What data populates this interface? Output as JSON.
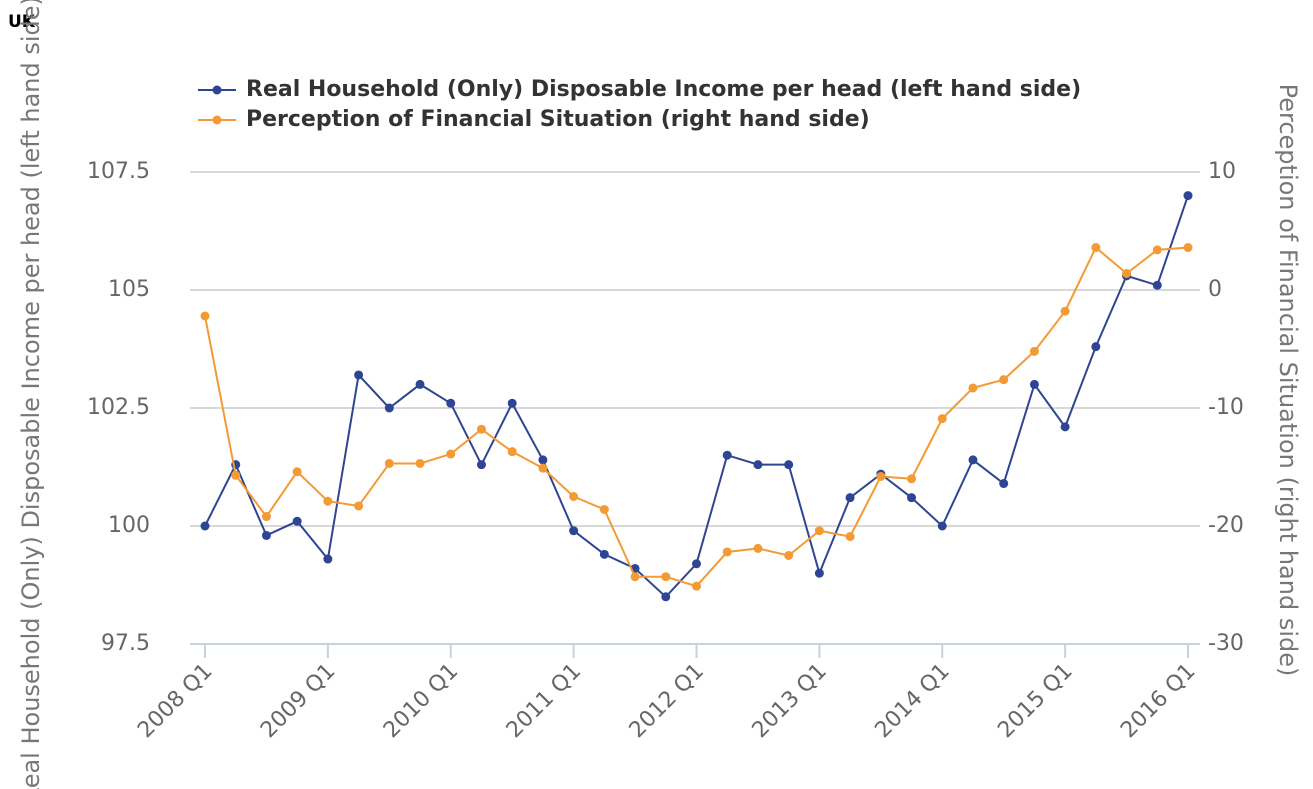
{
  "chart_data": {
    "type": "line",
    "title": "UK",
    "y_label": "Real Household (Only) Disposable Income per head (left hand side)",
    "y2_label": "Perception of Financial Situation (right hand side)",
    "categories": [
      "2008 Q1",
      null,
      null,
      null,
      "2009 Q1",
      null,
      null,
      null,
      "2010 Q1",
      null,
      null,
      null,
      "2011 Q1",
      null,
      null,
      null,
      "2012 Q1",
      null,
      null,
      null,
      "2013 Q1",
      null,
      null,
      null,
      "2014 Q1",
      null,
      null,
      null,
      "2015 Q1",
      null,
      null,
      null,
      "2016 Q1"
    ],
    "series": [
      {
        "name": "Real Household (Only) Disposable Income per head (left hand side)",
        "color": "#2e4593",
        "axis": "y",
        "values": [
          100.0,
          101.3,
          99.8,
          100.1,
          99.3,
          103.2,
          102.5,
          103.0,
          102.6,
          101.3,
          102.6,
          101.4,
          99.9,
          99.4,
          99.1,
          98.5,
          99.2,
          101.5,
          101.3,
          101.3,
          99.0,
          100.6,
          101.1,
          100.6,
          100.0,
          101.4,
          100.9,
          103.0,
          102.1,
          103.8,
          105.3,
          105.1,
          107.0
        ]
      },
      {
        "name": "Perception of Financial Situation (right hand side)",
        "color": "#f39a34",
        "axis": "y2",
        "values": [
          -2.2,
          -15.7,
          -19.2,
          -15.4,
          -17.9,
          -18.3,
          -14.7,
          -14.7,
          -13.9,
          -11.8,
          -13.7,
          -15.1,
          -17.5,
          -18.6,
          -24.3,
          -24.3,
          -25.1,
          -22.2,
          -21.9,
          -22.5,
          -20.4,
          -20.9,
          -15.8,
          -16.0,
          -10.9,
          -8.3,
          -7.6,
          -5.2,
          -1.8,
          3.6,
          1.4,
          3.4,
          3.6
        ]
      }
    ],
    "ylim": [
      97.5,
      107.5
    ],
    "yticks": [
      97.5,
      100,
      102.5,
      105,
      107.5
    ],
    "y2lim": [
      -30,
      10
    ],
    "y2ticks": [
      -30,
      -20,
      -10,
      0,
      10
    ],
    "grid": true
  }
}
